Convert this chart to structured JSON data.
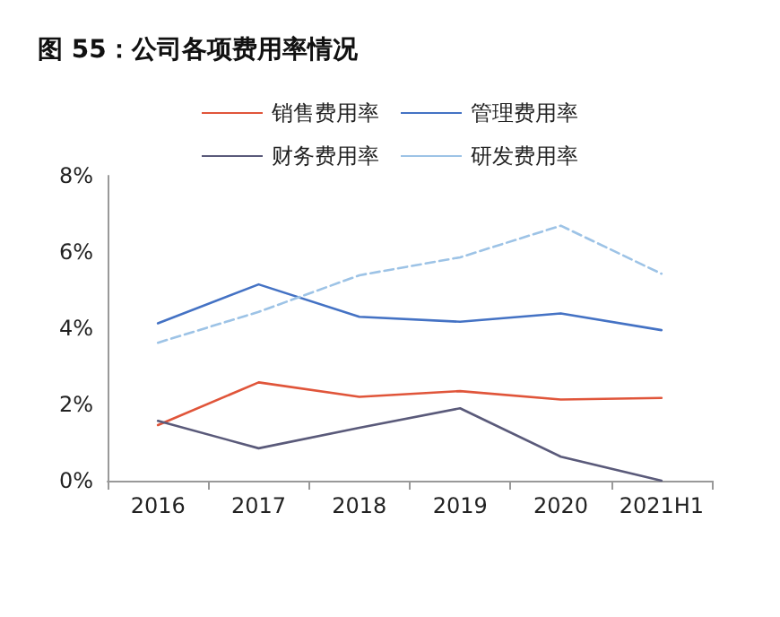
{
  "chart_data": {
    "type": "line",
    "title": "图 55：公司各项费用率情况",
    "categories": [
      "2016",
      "2017",
      "2018",
      "2019",
      "2020",
      "2021H1"
    ],
    "series": [
      {
        "name": "销售费用率",
        "color": "#e0553a",
        "line_style": "solid",
        "values": [
          1.46,
          2.58,
          2.2,
          2.35,
          2.13,
          2.17
        ]
      },
      {
        "name": "管理费用率",
        "color": "#4472c4",
        "line_style": "solid",
        "values": [
          4.13,
          5.15,
          4.3,
          4.17,
          4.39,
          3.95
        ]
      },
      {
        "name": "财务费用率",
        "color": "#5a5a7a",
        "line_style": "solid",
        "values": [
          1.57,
          0.85,
          1.39,
          1.9,
          0.63,
          0
        ]
      },
      {
        "name": "研发费用率",
        "color": "#9dc3e6",
        "line_style": "dashed",
        "values": [
          3.62,
          4.43,
          5.39,
          5.86,
          6.69,
          5.43
        ]
      }
    ],
    "ylim": [
      0,
      8
    ],
    "yticks": [
      {
        "value": 0,
        "label": "0%"
      },
      {
        "value": 2,
        "label": "2%"
      },
      {
        "value": 4,
        "label": "4%"
      },
      {
        "value": 6,
        "label": "6%"
      },
      {
        "value": 8,
        "label": "8%"
      }
    ],
    "grid": false,
    "legend": "top",
    "marker": "none"
  }
}
